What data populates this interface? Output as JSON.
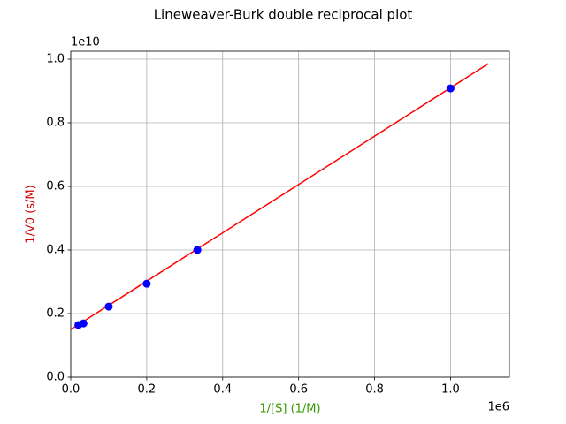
{
  "chart_data": {
    "type": "scatter",
    "title": "Lineweaver-Burk double reciprocal plot",
    "x_label": "1/[S] (1/M)",
    "y_label": "1/V0 (s/M)",
    "x_label_color": "#339900",
    "y_label_color": "#cc0000",
    "x_offset_label": "1e6",
    "y_offset_label": "1e10",
    "grid": true,
    "xlim": [
      0,
      1155000
    ],
    "ylim": [
      0,
      10250000000
    ],
    "xticks": [
      {
        "value": 0,
        "label": "0.0"
      },
      {
        "value": 200000,
        "label": "0.2"
      },
      {
        "value": 400000,
        "label": "0.4"
      },
      {
        "value": 600000,
        "label": "0.6"
      },
      {
        "value": 800000,
        "label": "0.8"
      },
      {
        "value": 1000000,
        "label": "1.0"
      }
    ],
    "yticks": [
      {
        "value": 0,
        "label": "0.0"
      },
      {
        "value": 2000000000,
        "label": "0.2"
      },
      {
        "value": 4000000000,
        "label": "0.4"
      },
      {
        "value": 6000000000,
        "label": "0.6"
      },
      {
        "value": 8000000000,
        "label": "0.8"
      },
      {
        "value": 10000000000,
        "label": "1.0"
      }
    ],
    "series": [
      {
        "style": "line",
        "color": "#ff0000",
        "x": [
          0,
          1100000
        ],
        "values": [
          1500000000,
          9860000000
        ]
      },
      {
        "style": "marker",
        "color": "#0000ff",
        "x": [
          20000,
          33333,
          100000,
          200000,
          333333,
          1000000
        ],
        "values": [
          1640000000,
          1690000000,
          2220000000,
          2940000000,
          4000000000,
          9080000000
        ]
      }
    ]
  }
}
